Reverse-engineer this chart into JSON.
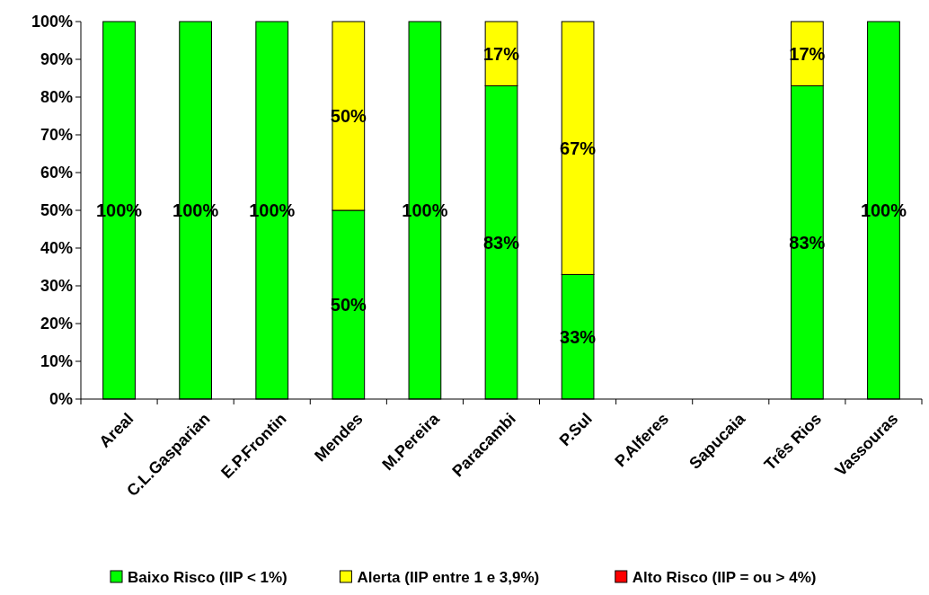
{
  "chart_data": {
    "type": "bar",
    "stacked": true,
    "categories": [
      "Areal",
      "C.L.Gasparian",
      "E.P.Frontin",
      "Mendes",
      "M.Pereira",
      "Paracambi",
      "P.Sul",
      "P.Alferes",
      "Sapucaia",
      "Três Rios",
      "Vassouras"
    ],
    "series": [
      {
        "name": "Baixo Risco (IIP < 1%)",
        "color": "#00ff00",
        "values": [
          100,
          100,
          100,
          50,
          100,
          83,
          33,
          null,
          null,
          83,
          100
        ],
        "value_labels": [
          "100%",
          "100%",
          "100%",
          "50%",
          "100%",
          "83%",
          "33%",
          null,
          null,
          "83%",
          "100%"
        ]
      },
      {
        "name": "Alerta (IIP entre 1 e 3,9%)",
        "color": "#ffff00",
        "values": [
          null,
          null,
          null,
          50,
          null,
          17,
          67,
          null,
          null,
          17,
          null
        ],
        "value_labels": [
          null,
          null,
          null,
          "50%",
          null,
          "17%",
          "67%",
          null,
          null,
          "17%",
          null
        ]
      },
      {
        "name": "Alto Risco (IIP = ou > 4%)",
        "color": "#ff0000",
        "values": [
          null,
          null,
          null,
          null,
          null,
          null,
          null,
          null,
          null,
          null,
          null
        ]
      }
    ],
    "ylim": [
      0,
      100
    ],
    "yticks": [
      {
        "value": 0,
        "label": "0%"
      },
      {
        "value": 10,
        "label": "10%"
      },
      {
        "value": 20,
        "label": "20%"
      },
      {
        "value": 30,
        "label": "30%"
      },
      {
        "value": 40,
        "label": "40%"
      },
      {
        "value": 50,
        "label": "50%"
      },
      {
        "value": 60,
        "label": "60%"
      },
      {
        "value": 70,
        "label": "70%"
      },
      {
        "value": 80,
        "label": "80%"
      },
      {
        "value": 90,
        "label": "90%"
      },
      {
        "value": 100,
        "label": "100%"
      }
    ],
    "grid": false,
    "legend": "bottom"
  }
}
